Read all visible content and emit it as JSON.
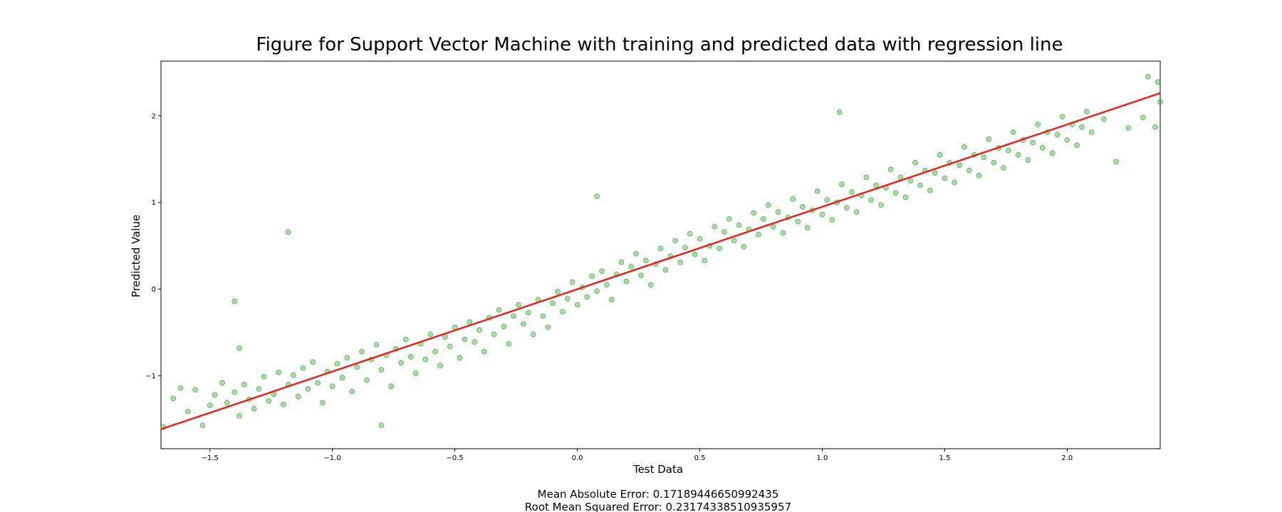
{
  "chart_data": {
    "type": "scatter",
    "title": "Figure for Support Vector Machine with training and predicted data with regression line",
    "xlabel": "Test Data",
    "ylabel": "Predicted Value",
    "xlim": [
      -1.7,
      2.38
    ],
    "ylim": [
      -1.84,
      2.63
    ],
    "xticks": [
      {
        "value": -1.5,
        "label": "−1.5"
      },
      {
        "value": -1.0,
        "label": "−1.0"
      },
      {
        "value": -0.5,
        "label": "−0.5"
      },
      {
        "value": 0.0,
        "label": "0.0"
      },
      {
        "value": 0.5,
        "label": "0.5"
      },
      {
        "value": 1.0,
        "label": "1.0"
      },
      {
        "value": 1.5,
        "label": "1.5"
      },
      {
        "value": 2.0,
        "label": "2.0"
      }
    ],
    "yticks": [
      {
        "value": -1,
        "label": "−1"
      },
      {
        "value": 0,
        "label": "0"
      },
      {
        "value": 1,
        "label": "1"
      },
      {
        "value": 2,
        "label": "2"
      }
    ],
    "grid": false,
    "point_color": "#2ca02c",
    "line_color": "#e8231b",
    "points": [
      [
        -1.69,
        -1.59
      ],
      [
        -1.65,
        -1.26
      ],
      [
        -1.62,
        -1.14
      ],
      [
        -1.59,
        -1.41
      ],
      [
        -1.56,
        -1.16
      ],
      [
        -1.53,
        -1.57
      ],
      [
        -1.5,
        -1.34
      ],
      [
        -1.48,
        -1.22
      ],
      [
        -1.45,
        -1.08
      ],
      [
        -1.43,
        -1.31
      ],
      [
        -1.4,
        -1.19
      ],
      [
        -1.38,
        -1.46
      ],
      [
        -1.36,
        -1.1
      ],
      [
        -1.34,
        -1.27
      ],
      [
        -1.32,
        -1.38
      ],
      [
        -1.3,
        -1.15
      ],
      [
        -1.28,
        -1.01
      ],
      [
        -1.26,
        -1.29
      ],
      [
        -1.24,
        -1.21
      ],
      [
        -1.22,
        -0.96
      ],
      [
        -1.2,
        -1.33
      ],
      [
        -1.18,
        -1.1
      ],
      [
        -1.16,
        -0.99
      ],
      [
        -1.14,
        -1.24
      ],
      [
        -1.12,
        -0.91
      ],
      [
        -1.1,
        -1.15
      ],
      [
        -1.08,
        -0.84
      ],
      [
        -1.06,
        -1.08
      ],
      [
        -1.04,
        -1.31
      ],
      [
        -1.02,
        -0.95
      ],
      [
        -1.0,
        -1.12
      ],
      [
        -0.98,
        -0.86
      ],
      [
        -0.96,
        -1.02
      ],
      [
        -0.94,
        -0.79
      ],
      [
        -0.92,
        -1.18
      ],
      [
        -0.9,
        -0.9
      ],
      [
        -0.88,
        -0.72
      ],
      [
        -0.86,
        -1.05
      ],
      [
        -0.84,
        -0.81
      ],
      [
        -0.82,
        -0.64
      ],
      [
        -0.8,
        -0.93
      ],
      [
        -0.78,
        -0.76
      ],
      [
        -0.76,
        -1.12
      ],
      [
        -0.74,
        -0.69
      ],
      [
        -0.72,
        -0.85
      ],
      [
        -0.7,
        -0.58
      ],
      [
        -0.68,
        -0.78
      ],
      [
        -0.66,
        -0.97
      ],
      [
        -0.64,
        -0.63
      ],
      [
        -0.62,
        -0.81
      ],
      [
        -0.6,
        -0.52
      ],
      [
        -0.58,
        -0.72
      ],
      [
        -0.56,
        -0.88
      ],
      [
        -0.54,
        -0.55
      ],
      [
        -0.52,
        -0.66
      ],
      [
        -0.5,
        -0.44
      ],
      [
        -0.48,
        -0.79
      ],
      [
        -0.46,
        -0.58
      ],
      [
        -0.44,
        -0.38
      ],
      [
        -0.42,
        -0.61
      ],
      [
        -0.4,
        -0.47
      ],
      [
        -0.38,
        -0.72
      ],
      [
        -0.36,
        -0.33
      ],
      [
        -0.34,
        -0.52
      ],
      [
        -0.32,
        -0.24
      ],
      [
        -0.3,
        -0.43
      ],
      [
        -0.28,
        -0.63
      ],
      [
        -0.26,
        -0.31
      ],
      [
        -0.24,
        -0.18
      ],
      [
        -0.22,
        -0.4
      ],
      [
        -0.2,
        -0.27
      ],
      [
        -0.18,
        -0.52
      ],
      [
        -0.16,
        -0.12
      ],
      [
        -0.14,
        -0.31
      ],
      [
        -0.12,
        -0.44
      ],
      [
        -0.1,
        -0.16
      ],
      [
        -0.08,
        -0.03
      ],
      [
        -0.06,
        -0.26
      ],
      [
        -0.04,
        -0.11
      ],
      [
        -0.02,
        0.08
      ],
      [
        0.0,
        -0.18
      ],
      [
        0.02,
        0.02
      ],
      [
        0.04,
        -0.09
      ],
      [
        0.06,
        0.15
      ],
      [
        0.08,
        -0.02
      ],
      [
        0.1,
        0.21
      ],
      [
        0.12,
        0.05
      ],
      [
        0.14,
        -0.12
      ],
      [
        0.16,
        0.17
      ],
      [
        0.18,
        0.31
      ],
      [
        0.2,
        0.09
      ],
      [
        0.22,
        0.26
      ],
      [
        0.24,
        0.41
      ],
      [
        0.26,
        0.16
      ],
      [
        0.28,
        0.33
      ],
      [
        0.3,
        0.05
      ],
      [
        0.32,
        0.29
      ],
      [
        0.34,
        0.47
      ],
      [
        0.36,
        0.22
      ],
      [
        0.38,
        0.38
      ],
      [
        0.4,
        0.56
      ],
      [
        0.42,
        0.31
      ],
      [
        0.44,
        0.48
      ],
      [
        0.46,
        0.64
      ],
      [
        0.48,
        0.4
      ],
      [
        0.5,
        0.58
      ],
      [
        0.52,
        0.33
      ],
      [
        0.54,
        0.5
      ],
      [
        0.56,
        0.72
      ],
      [
        0.58,
        0.47
      ],
      [
        0.6,
        0.66
      ],
      [
        0.62,
        0.81
      ],
      [
        0.64,
        0.56
      ],
      [
        0.66,
        0.74
      ],
      [
        0.68,
        0.49
      ],
      [
        0.7,
        0.69
      ],
      [
        0.72,
        0.88
      ],
      [
        0.74,
        0.63
      ],
      [
        0.76,
        0.81
      ],
      [
        0.78,
        0.97
      ],
      [
        0.8,
        0.72
      ],
      [
        0.82,
        0.89
      ],
      [
        0.84,
        0.65
      ],
      [
        0.86,
        0.83
      ],
      [
        0.88,
        1.04
      ],
      [
        0.9,
        0.78
      ],
      [
        0.92,
        0.95
      ],
      [
        0.94,
        0.71
      ],
      [
        0.96,
        0.91
      ],
      [
        0.98,
        1.13
      ],
      [
        1.0,
        0.86
      ],
      [
        1.02,
        1.03
      ],
      [
        1.04,
        0.8
      ],
      [
        1.06,
        1.0
      ],
      [
        1.08,
        1.21
      ],
      [
        1.1,
        0.94
      ],
      [
        1.12,
        1.12
      ],
      [
        1.14,
        0.89
      ],
      [
        1.16,
        1.08
      ],
      [
        1.18,
        1.29
      ],
      [
        1.2,
        1.03
      ],
      [
        1.22,
        1.2
      ],
      [
        1.24,
        0.97
      ],
      [
        1.26,
        1.17
      ],
      [
        1.28,
        1.38
      ],
      [
        1.3,
        1.11
      ],
      [
        1.32,
        1.29
      ],
      [
        1.34,
        1.06
      ],
      [
        1.36,
        1.25
      ],
      [
        1.38,
        1.46
      ],
      [
        1.4,
        1.2
      ],
      [
        1.42,
        1.37
      ],
      [
        1.44,
        1.14
      ],
      [
        1.46,
        1.34
      ],
      [
        1.48,
        1.55
      ],
      [
        1.5,
        1.28
      ],
      [
        1.52,
        1.46
      ],
      [
        1.54,
        1.23
      ],
      [
        1.56,
        1.43
      ],
      [
        1.58,
        1.64
      ],
      [
        1.6,
        1.37
      ],
      [
        1.62,
        1.55
      ],
      [
        1.64,
        1.31
      ],
      [
        1.66,
        1.52
      ],
      [
        1.68,
        1.73
      ],
      [
        1.7,
        1.46
      ],
      [
        1.72,
        1.63
      ],
      [
        1.74,
        1.4
      ],
      [
        1.76,
        1.6
      ],
      [
        1.78,
        1.81
      ],
      [
        1.8,
        1.55
      ],
      [
        1.82,
        1.72
      ],
      [
        1.84,
        1.49
      ],
      [
        1.86,
        1.69
      ],
      [
        1.88,
        1.9
      ],
      [
        1.9,
        1.63
      ],
      [
        1.92,
        1.81
      ],
      [
        1.94,
        1.57
      ],
      [
        1.96,
        1.78
      ],
      [
        1.98,
        1.99
      ],
      [
        2.0,
        1.72
      ],
      [
        2.02,
        1.9
      ],
      [
        2.04,
        1.66
      ],
      [
        2.06,
        1.87
      ],
      [
        2.08,
        2.05
      ],
      [
        2.1,
        1.81
      ],
      [
        2.15,
        1.96
      ],
      [
        2.2,
        1.47
      ],
      [
        2.25,
        1.86
      ],
      [
        2.31,
        1.98
      ],
      [
        2.33,
        2.45
      ],
      [
        2.36,
        1.87
      ],
      [
        2.37,
        2.39
      ],
      [
        2.38,
        2.16
      ],
      [
        -1.18,
        0.66
      ],
      [
        -1.4,
        -0.14
      ],
      [
        -1.38,
        -0.68
      ],
      [
        1.07,
        2.04
      ],
      [
        0.08,
        1.07
      ],
      [
        -0.8,
        -1.57
      ]
    ],
    "regression": {
      "slope": 0.95,
      "intercept": 0.0
    }
  },
  "metrics": {
    "mae_label": "Mean Absolute Error: 0.17189446650992435",
    "rmse_label": "Root Mean Squared Error: 0.23174338510935957"
  }
}
